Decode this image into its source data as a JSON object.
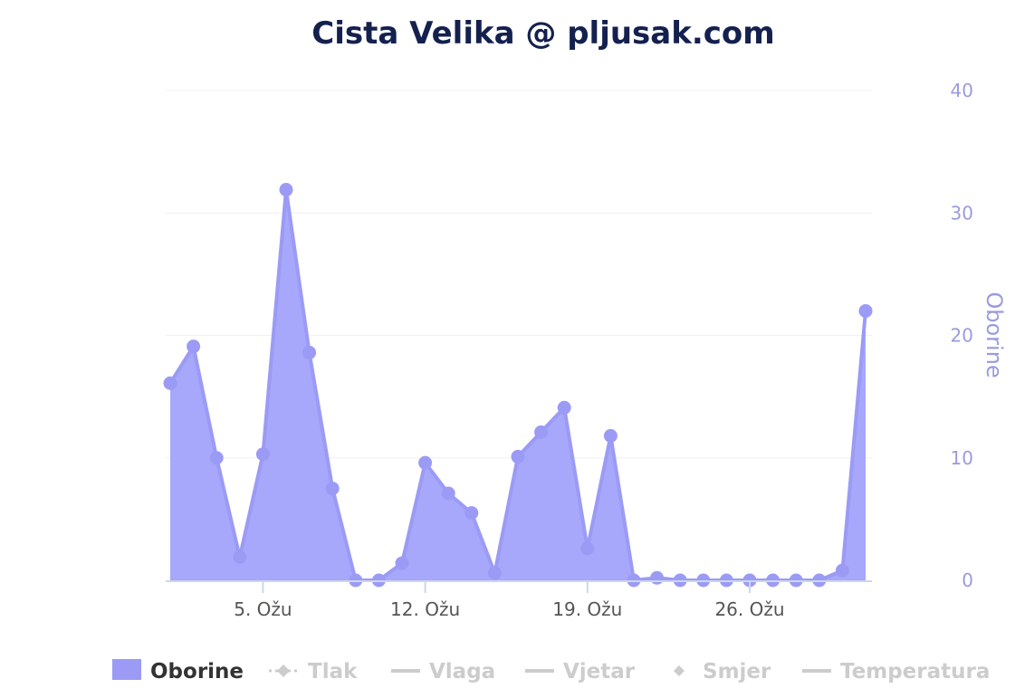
{
  "chart_data": {
    "type": "area",
    "title": "Cista Velika @ pljusak.com",
    "ylabel": "Oborine",
    "ylim": [
      0,
      40
    ],
    "y_ticks": [
      "0",
      "10",
      "20",
      "30",
      "40"
    ],
    "x_tick_labels": [
      {
        "day": 5,
        "label": "5. Ožu"
      },
      {
        "day": 12,
        "label": "12. Ožu"
      },
      {
        "day": 19,
        "label": "19. Ožu"
      },
      {
        "day": 26,
        "label": "26. Ožu"
      }
    ],
    "x": [
      1,
      2,
      3,
      4,
      5,
      6,
      7,
      8,
      9,
      10,
      11,
      12,
      13,
      14,
      15,
      16,
      17,
      18,
      19,
      20,
      21,
      22,
      23,
      24,
      25,
      26,
      27,
      28,
      29,
      30,
      31
    ],
    "series": [
      {
        "name": "Oborine",
        "color": "#9b9bf6",
        "values": [
          16.1,
          19.1,
          10.0,
          1.9,
          10.3,
          31.9,
          18.6,
          7.5,
          0,
          0,
          1.4,
          9.6,
          7.1,
          5.5,
          0.6,
          10.1,
          12.1,
          14.1,
          2.6,
          11.8,
          0,
          0.2,
          0,
          0,
          0,
          0,
          0,
          0,
          0,
          0.8,
          22.0
        ]
      }
    ],
    "grid": true,
    "legend": {
      "position": "bottom",
      "items": [
        {
          "label": "Oborine",
          "active": true,
          "symbol": "area-square"
        },
        {
          "label": "Tlak",
          "active": false,
          "symbol": "dashed-diamond"
        },
        {
          "label": "Vlaga",
          "active": false,
          "symbol": "line"
        },
        {
          "label": "Vjetar",
          "active": false,
          "symbol": "line"
        },
        {
          "label": "Smjer",
          "active": false,
          "symbol": "diamond"
        },
        {
          "label": "Temperatura",
          "active": false,
          "symbol": "line"
        }
      ]
    }
  },
  "colors": {
    "title": "#14214f",
    "series": "#9b9bf6",
    "area_fill": "#a7a7fb",
    "axis": "#9b9bdc",
    "inactive": "#cccccc",
    "active_legend_text": "#333333",
    "grid": "#f0f0f0"
  }
}
